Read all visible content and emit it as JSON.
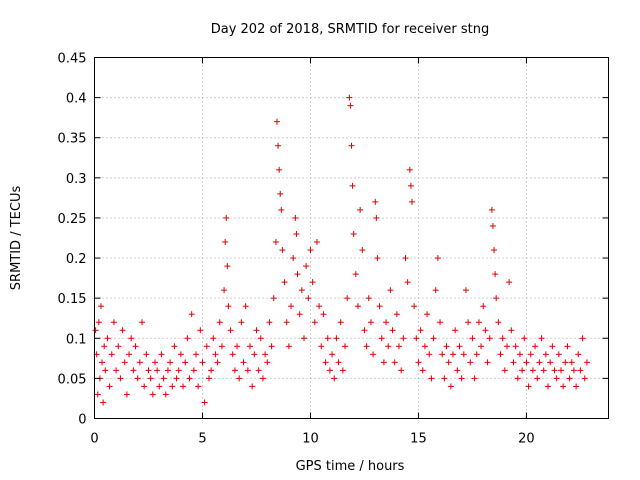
{
  "chart_data": {
    "type": "scatter",
    "title": "Day 202 of 2018, SRMTID for receiver stng",
    "xlabel": "GPS time / hours",
    "ylabel": "SRMTID / TECUs",
    "xlim": [
      0,
      23.8
    ],
    "ylim": [
      0,
      0.45
    ],
    "xticks": [
      0,
      5,
      10,
      15,
      20
    ],
    "xtick_labels": [
      "0",
      "5",
      "10",
      "15",
      "20"
    ],
    "yticks": [
      0,
      0.05,
      0.1,
      0.15,
      0.2,
      0.25,
      0.3,
      0.35,
      0.4,
      0.45
    ],
    "ytick_labels": [
      "0",
      "0.05",
      "0.1",
      "0.15",
      "0.2",
      "0.25",
      "0.3",
      "0.35",
      "0.4",
      "0.45"
    ],
    "grid": true,
    "marker": "+",
    "marker_color": "#e00000",
    "series": [
      {
        "name": "SRMTID",
        "points": [
          [
            0.05,
            0.11
          ],
          [
            0.1,
            0.08
          ],
          [
            0.15,
            0.03
          ],
          [
            0.2,
            0.12
          ],
          [
            0.25,
            0.05
          ],
          [
            0.3,
            0.14
          ],
          [
            0.35,
            0.07
          ],
          [
            0.4,
            0.02
          ],
          [
            0.45,
            0.09
          ],
          [
            0.5,
            0.06
          ],
          [
            0.6,
            0.1
          ],
          [
            0.7,
            0.04
          ],
          [
            0.8,
            0.08
          ],
          [
            0.9,
            0.12
          ],
          [
            1.0,
            0.06
          ],
          [
            1.1,
            0.09
          ],
          [
            1.2,
            0.05
          ],
          [
            1.3,
            0.11
          ],
          [
            1.4,
            0.07
          ],
          [
            1.5,
            0.03
          ],
          [
            1.6,
            0.08
          ],
          [
            1.7,
            0.1
          ],
          [
            1.8,
            0.06
          ],
          [
            1.9,
            0.09
          ],
          [
            2.0,
            0.05
          ],
          [
            2.1,
            0.07
          ],
          [
            2.2,
            0.12
          ],
          [
            2.3,
            0.04
          ],
          [
            2.4,
            0.08
          ],
          [
            2.5,
            0.06
          ],
          [
            2.6,
            0.05
          ],
          [
            2.7,
            0.03
          ],
          [
            2.8,
            0.07
          ],
          [
            2.9,
            0.06
          ],
          [
            3.0,
            0.04
          ],
          [
            3.1,
            0.08
          ],
          [
            3.2,
            0.05
          ],
          [
            3.3,
            0.03
          ],
          [
            3.4,
            0.06
          ],
          [
            3.5,
            0.07
          ],
          [
            3.6,
            0.04
          ],
          [
            3.7,
            0.09
          ],
          [
            3.8,
            0.05
          ],
          [
            3.9,
            0.06
          ],
          [
            4.0,
            0.08
          ],
          [
            4.1,
            0.04
          ],
          [
            4.2,
            0.07
          ],
          [
            4.3,
            0.1
          ],
          [
            4.4,
            0.05
          ],
          [
            4.5,
            0.13
          ],
          [
            4.6,
            0.06
          ],
          [
            4.7,
            0.08
          ],
          [
            4.8,
            0.04
          ],
          [
            4.9,
            0.11
          ],
          [
            5.0,
            0.07
          ],
          [
            5.1,
            0.02
          ],
          [
            5.2,
            0.09
          ],
          [
            5.3,
            0.05
          ],
          [
            5.4,
            0.06
          ],
          [
            5.5,
            0.1
          ],
          [
            5.6,
            0.08
          ],
          [
            5.7,
            0.07
          ],
          [
            5.8,
            0.12
          ],
          [
            5.9,
            0.09
          ],
          [
            6.0,
            0.16
          ],
          [
            6.05,
            0.22
          ],
          [
            6.1,
            0.25
          ],
          [
            6.15,
            0.19
          ],
          [
            6.2,
            0.14
          ],
          [
            6.3,
            0.11
          ],
          [
            6.4,
            0.08
          ],
          [
            6.5,
            0.06
          ],
          [
            6.6,
            0.09
          ],
          [
            6.7,
            0.05
          ],
          [
            6.8,
            0.12
          ],
          [
            6.9,
            0.07
          ],
          [
            7.0,
            0.14
          ],
          [
            7.1,
            0.06
          ],
          [
            7.2,
            0.09
          ],
          [
            7.3,
            0.04
          ],
          [
            7.4,
            0.08
          ],
          [
            7.5,
            0.11
          ],
          [
            7.6,
            0.06
          ],
          [
            7.7,
            0.1
          ],
          [
            7.8,
            0.05
          ],
          [
            7.9,
            0.08
          ],
          [
            8.0,
            0.07
          ],
          [
            8.1,
            0.12
          ],
          [
            8.2,
            0.09
          ],
          [
            8.3,
            0.15
          ],
          [
            8.4,
            0.22
          ],
          [
            8.45,
            0.37
          ],
          [
            8.5,
            0.34
          ],
          [
            8.55,
            0.31
          ],
          [
            8.6,
            0.28
          ],
          [
            8.65,
            0.26
          ],
          [
            8.7,
            0.21
          ],
          [
            8.8,
            0.17
          ],
          [
            8.9,
            0.12
          ],
          [
            9.0,
            0.09
          ],
          [
            9.1,
            0.14
          ],
          [
            9.2,
            0.2
          ],
          [
            9.3,
            0.25
          ],
          [
            9.35,
            0.23
          ],
          [
            9.4,
            0.18
          ],
          [
            9.5,
            0.13
          ],
          [
            9.6,
            0.16
          ],
          [
            9.7,
            0.1
          ],
          [
            9.8,
            0.19
          ],
          [
            9.9,
            0.15
          ],
          [
            10.0,
            0.21
          ],
          [
            10.1,
            0.17
          ],
          [
            10.2,
            0.12
          ],
          [
            10.3,
            0.22
          ],
          [
            10.4,
            0.14
          ],
          [
            10.5,
            0.09
          ],
          [
            10.6,
            0.13
          ],
          [
            10.7,
            0.07
          ],
          [
            10.8,
            0.1
          ],
          [
            10.9,
            0.06
          ],
          [
            11.0,
            0.08
          ],
          [
            11.1,
            0.05
          ],
          [
            11.2,
            0.1
          ],
          [
            11.3,
            0.07
          ],
          [
            11.4,
            0.12
          ],
          [
            11.5,
            0.06
          ],
          [
            11.6,
            0.09
          ],
          [
            11.7,
            0.15
          ],
          [
            11.8,
            0.4
          ],
          [
            11.85,
            0.39
          ],
          [
            11.9,
            0.34
          ],
          [
            11.95,
            0.29
          ],
          [
            12.0,
            0.23
          ],
          [
            12.1,
            0.18
          ],
          [
            12.2,
            0.14
          ],
          [
            12.3,
            0.26
          ],
          [
            12.4,
            0.21
          ],
          [
            12.5,
            0.11
          ],
          [
            12.6,
            0.09
          ],
          [
            12.7,
            0.15
          ],
          [
            12.8,
            0.12
          ],
          [
            12.9,
            0.08
          ],
          [
            13.0,
            0.27
          ],
          [
            13.05,
            0.25
          ],
          [
            13.1,
            0.2
          ],
          [
            13.2,
            0.14
          ],
          [
            13.3,
            0.1
          ],
          [
            13.4,
            0.07
          ],
          [
            13.5,
            0.12
          ],
          [
            13.6,
            0.09
          ],
          [
            13.7,
            0.16
          ],
          [
            13.8,
            0.11
          ],
          [
            13.9,
            0.07
          ],
          [
            14.0,
            0.13
          ],
          [
            14.1,
            0.09
          ],
          [
            14.2,
            0.06
          ],
          [
            14.3,
            0.1
          ],
          [
            14.4,
            0.2
          ],
          [
            14.5,
            0.17
          ],
          [
            14.6,
            0.31
          ],
          [
            14.65,
            0.29
          ],
          [
            14.7,
            0.27
          ],
          [
            14.8,
            0.14
          ],
          [
            14.9,
            0.1
          ],
          [
            15.0,
            0.07
          ],
          [
            15.1,
            0.11
          ],
          [
            15.2,
            0.06
          ],
          [
            15.3,
            0.09
          ],
          [
            15.4,
            0.13
          ],
          [
            15.5,
            0.08
          ],
          [
            15.6,
            0.05
          ],
          [
            15.7,
            0.1
          ],
          [
            15.8,
            0.16
          ],
          [
            15.9,
            0.2
          ],
          [
            16.0,
            0.12
          ],
          [
            16.1,
            0.08
          ],
          [
            16.2,
            0.05
          ],
          [
            16.3,
            0.09
          ],
          [
            16.4,
            0.07
          ],
          [
            16.5,
            0.04
          ],
          [
            16.6,
            0.08
          ],
          [
            16.7,
            0.11
          ],
          [
            16.8,
            0.06
          ],
          [
            16.9,
            0.09
          ],
          [
            17.0,
            0.05
          ],
          [
            17.1,
            0.08
          ],
          [
            17.2,
            0.16
          ],
          [
            17.3,
            0.12
          ],
          [
            17.4,
            0.07
          ],
          [
            17.5,
            0.1
          ],
          [
            17.6,
            0.05
          ],
          [
            17.7,
            0.08
          ],
          [
            17.8,
            0.12
          ],
          [
            17.9,
            0.09
          ],
          [
            18.0,
            0.14
          ],
          [
            18.1,
            0.11
          ],
          [
            18.2,
            0.07
          ],
          [
            18.3,
            0.1
          ],
          [
            18.4,
            0.26
          ],
          [
            18.45,
            0.24
          ],
          [
            18.5,
            0.21
          ],
          [
            18.55,
            0.18
          ],
          [
            18.6,
            0.15
          ],
          [
            18.7,
            0.12
          ],
          [
            18.8,
            0.08
          ],
          [
            18.9,
            0.1
          ],
          [
            19.0,
            0.06
          ],
          [
            19.1,
            0.09
          ],
          [
            19.2,
            0.17
          ],
          [
            19.3,
            0.11
          ],
          [
            19.4,
            0.07
          ],
          [
            19.5,
            0.09
          ],
          [
            19.6,
            0.05
          ],
          [
            19.7,
            0.08
          ],
          [
            19.8,
            0.06
          ],
          [
            19.9,
            0.1
          ],
          [
            20.0,
            0.07
          ],
          [
            20.1,
            0.04
          ],
          [
            20.2,
            0.08
          ],
          [
            20.3,
            0.06
          ],
          [
            20.4,
            0.09
          ],
          [
            20.5,
            0.05
          ],
          [
            20.6,
            0.07
          ],
          [
            20.7,
            0.1
          ],
          [
            20.8,
            0.06
          ],
          [
            20.9,
            0.08
          ],
          [
            21.0,
            0.04
          ],
          [
            21.1,
            0.07
          ],
          [
            21.2,
            0.09
          ],
          [
            21.3,
            0.06
          ],
          [
            21.4,
            0.05
          ],
          [
            21.5,
            0.08
          ],
          [
            21.6,
            0.06
          ],
          [
            21.7,
            0.04
          ],
          [
            21.8,
            0.07
          ],
          [
            21.9,
            0.09
          ],
          [
            22.0,
            0.05
          ],
          [
            22.1,
            0.07
          ],
          [
            22.2,
            0.06
          ],
          [
            22.3,
            0.04
          ],
          [
            22.4,
            0.08
          ],
          [
            22.5,
            0.06
          ],
          [
            22.6,
            0.1
          ],
          [
            22.7,
            0.05
          ],
          [
            22.8,
            0.07
          ]
        ]
      }
    ]
  }
}
